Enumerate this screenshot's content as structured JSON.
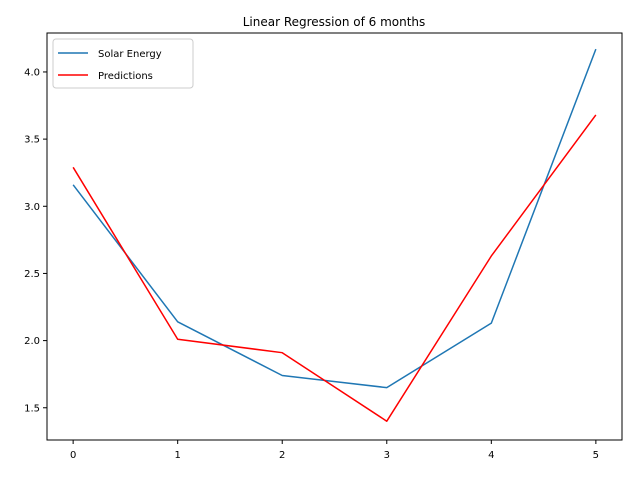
{
  "chart_data": {
    "type": "line",
    "title": "Linear Regression of 6 months",
    "xlabel": "",
    "ylabel": "",
    "x": [
      0,
      1,
      2,
      3,
      4,
      5
    ],
    "x_ticks": [
      "0",
      "1",
      "2",
      "3",
      "4",
      "5"
    ],
    "y_ticks": [
      "1.5",
      "2.0",
      "2.5",
      "3.0",
      "3.5",
      "4.0"
    ],
    "xlim": [
      -0.25,
      5.25
    ],
    "ylim": [
      1.26,
      4.29
    ],
    "grid": false,
    "legend_position": "upper-left",
    "series": [
      {
        "name": "Solar Energy",
        "color": "#1f77b4",
        "values": [
          3.16,
          2.14,
          1.74,
          1.65,
          2.13,
          4.17
        ]
      },
      {
        "name": "Predictions",
        "color": "#ff0000",
        "values": [
          3.29,
          2.01,
          1.91,
          1.4,
          2.63,
          3.68
        ]
      }
    ]
  }
}
